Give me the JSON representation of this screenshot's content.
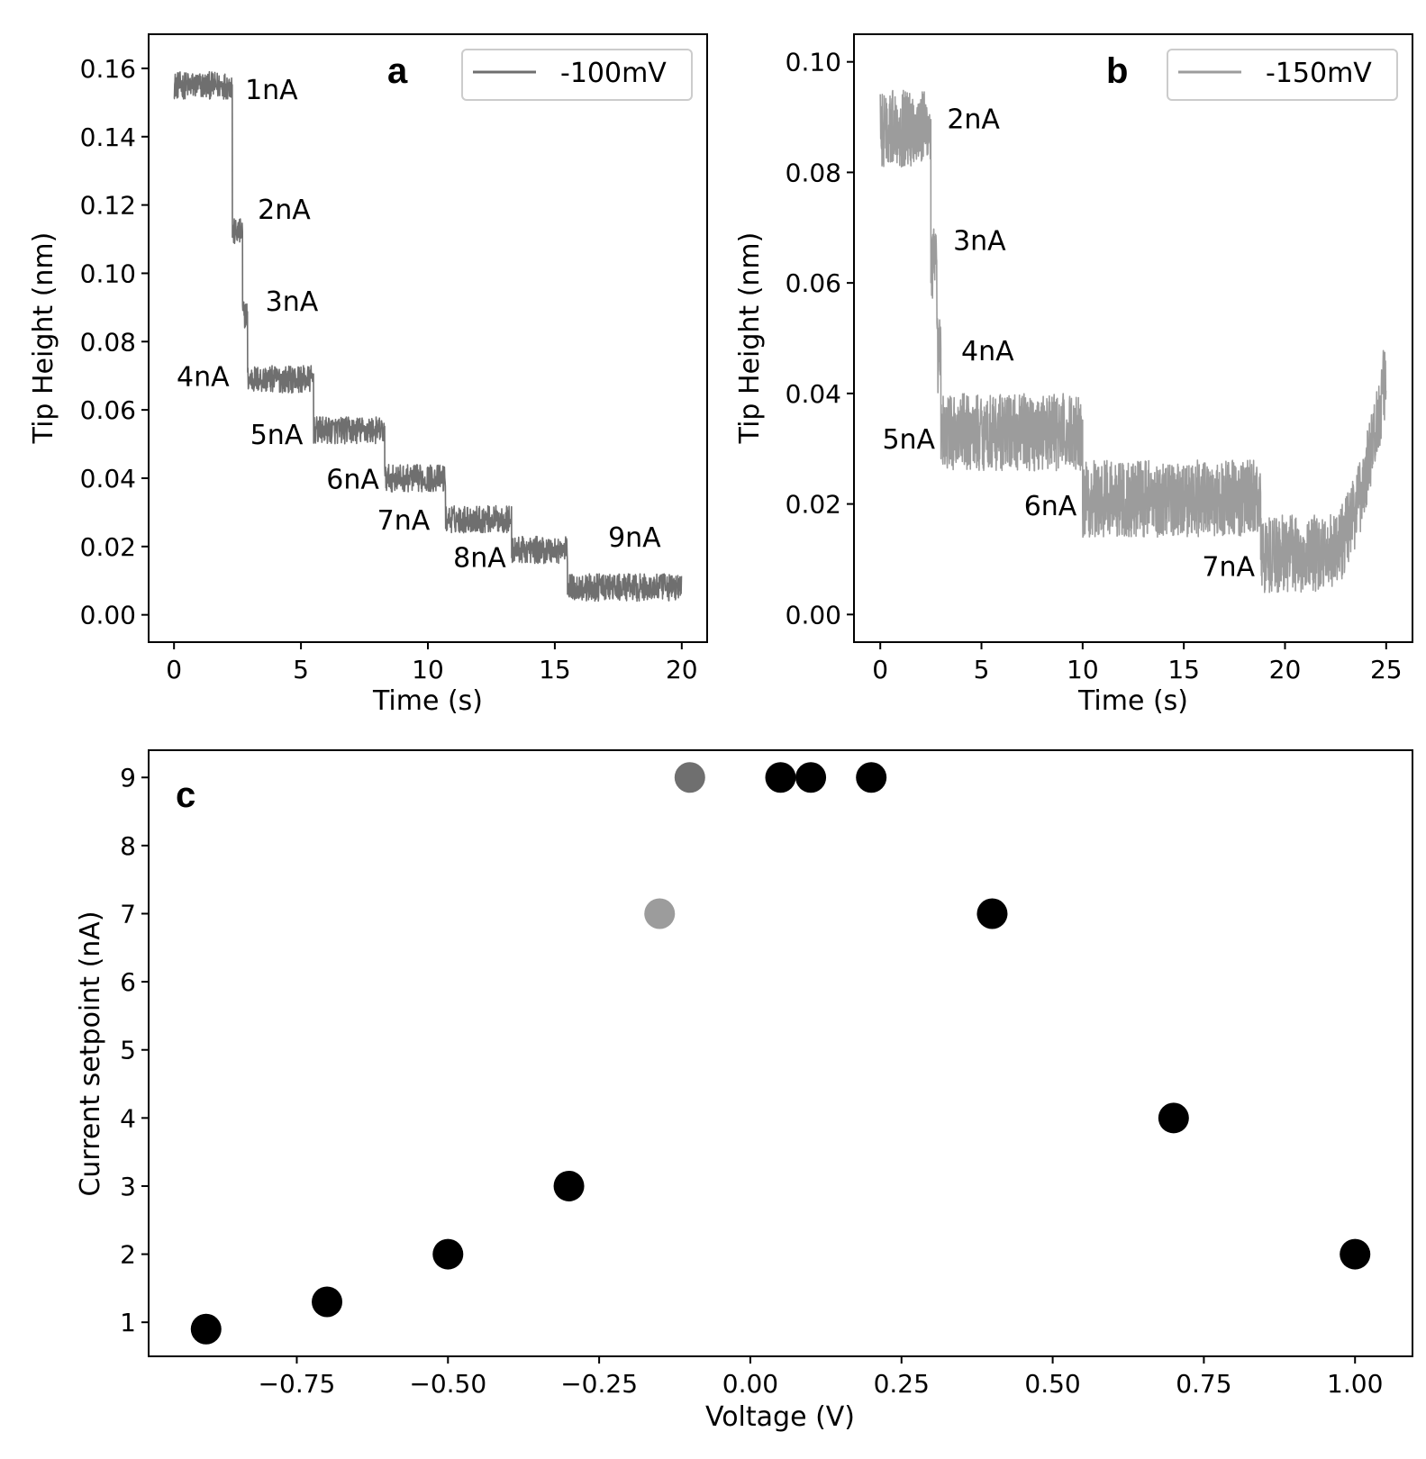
{
  "chart_data": [
    {
      "panel": "a",
      "type": "line",
      "xlabel": "Time (s)",
      "ylabel": "Tip Height (nm)",
      "xlim": [
        -1,
        21
      ],
      "ylim": [
        -0.008,
        0.17
      ],
      "xticks": [
        0,
        5,
        10,
        15,
        20
      ],
      "yticks": [
        0.0,
        0.02,
        0.04,
        0.06,
        0.08,
        0.1,
        0.12,
        0.14,
        0.16
      ],
      "ytick_labels": [
        "0.00",
        "0.02",
        "0.04",
        "0.06",
        "0.08",
        "0.10",
        "0.12",
        "0.14",
        "0.16"
      ],
      "legend": {
        "label": "-100mV",
        "color": "#6f6f6f",
        "placement": "upper-right"
      },
      "noise": 0.004,
      "segments": [
        {
          "t0": 0.0,
          "t1": 2.3,
          "y": 0.155,
          "label": "1nA"
        },
        {
          "t0": 2.3,
          "t1": 2.7,
          "y": 0.112,
          "label": "2nA"
        },
        {
          "t0": 2.7,
          "t1": 2.9,
          "y": 0.088,
          "label": "3nA"
        },
        {
          "t0": 2.9,
          "t1": 5.5,
          "y": 0.069,
          "label": "4nA"
        },
        {
          "t0": 5.5,
          "t1": 8.3,
          "y": 0.054,
          "label": "5nA"
        },
        {
          "t0": 8.3,
          "t1": 10.7,
          "y": 0.04,
          "label": "6nA"
        },
        {
          "t0": 10.7,
          "t1": 13.3,
          "y": 0.028,
          "label": "7nA"
        },
        {
          "t0": 13.3,
          "t1": 15.5,
          "y": 0.019,
          "label": "8nA"
        },
        {
          "t0": 15.5,
          "t1": 20.0,
          "y": 0.008,
          "label": "9nA"
        }
      ],
      "annotations": [
        {
          "text": "1nA",
          "x": 2.8,
          "y": 0.151
        },
        {
          "text": "2nA",
          "x": 3.3,
          "y": 0.116
        },
        {
          "text": "3nA",
          "x": 3.6,
          "y": 0.089
        },
        {
          "text": "4nA",
          "x": 0.1,
          "y": 0.067
        },
        {
          "text": "5nA",
          "x": 3.0,
          "y": 0.05
        },
        {
          "text": "6nA",
          "x": 6.0,
          "y": 0.037
        },
        {
          "text": "7nA",
          "x": 8.0,
          "y": 0.025
        },
        {
          "text": "8nA",
          "x": 11.0,
          "y": 0.014
        },
        {
          "text": "9nA",
          "x": 17.1,
          "y": 0.02
        }
      ]
    },
    {
      "panel": "b",
      "type": "line",
      "xlabel": "Time (s)",
      "ylabel": "Tip Height (nm)",
      "xlim": [
        -1.3,
        26.3
      ],
      "ylim": [
        -0.005,
        0.105
      ],
      "xticks": [
        0,
        5,
        10,
        15,
        20,
        25
      ],
      "yticks": [
        0.0,
        0.02,
        0.04,
        0.06,
        0.08,
        0.1
      ],
      "ytick_labels": [
        "0.00",
        "0.02",
        "0.04",
        "0.06",
        "0.08",
        "0.10"
      ],
      "legend": {
        "label": "-150mV",
        "color": "#9c9c9c",
        "placement": "upper-right"
      },
      "noise": 0.007,
      "segments": [
        {
          "t0": 0.0,
          "t1": 2.5,
          "y": 0.088,
          "label": "2nA"
        },
        {
          "t0": 2.5,
          "t1": 2.8,
          "y": 0.063,
          "label": "3nA"
        },
        {
          "t0": 2.8,
          "t1": 3.0,
          "y": 0.047,
          "label": "4nA"
        },
        {
          "t0": 3.0,
          "t1": 10.0,
          "y": 0.033,
          "label": "5nA"
        },
        {
          "t0": 10.0,
          "t1": 18.8,
          "y": 0.021,
          "label": "6nA"
        },
        {
          "t0": 18.8,
          "t1": 22.0,
          "y": 0.011,
          "label": "7nA"
        },
        {
          "t0": 22.0,
          "t1": 25.0,
          "y": 0.011,
          "y_end": 0.044,
          "label": ""
        }
      ],
      "annotations": [
        {
          "text": "2nA",
          "x": 3.3,
          "y": 0.088
        },
        {
          "text": "3nA",
          "x": 3.6,
          "y": 0.066
        },
        {
          "text": "4nA",
          "x": 4.0,
          "y": 0.046
        },
        {
          "text": "5nA",
          "x": 0.1,
          "y": 0.03
        },
        {
          "text": "6nA",
          "x": 7.1,
          "y": 0.018
        },
        {
          "text": "7nA",
          "x": 15.9,
          "y": 0.007
        }
      ]
    },
    {
      "panel": "c",
      "type": "scatter",
      "xlabel": "Voltage (V)",
      "ylabel": "Current setpoint (nA)",
      "xlim": [
        -0.995,
        1.095
      ],
      "ylim": [
        0.5,
        9.4
      ],
      "xticks": [
        -0.75,
        -0.5,
        -0.25,
        0.0,
        0.25,
        0.5,
        0.75,
        1.0
      ],
      "xtick_labels": [
        "−0.75",
        "−0.50",
        "−0.25",
        "0.00",
        "0.25",
        "0.50",
        "0.75",
        "1.00"
      ],
      "yticks": [
        1,
        2,
        3,
        4,
        5,
        6,
        7,
        8,
        9
      ],
      "points": [
        {
          "x": -0.9,
          "y": 0.9,
          "color": "#000000"
        },
        {
          "x": -0.7,
          "y": 1.3,
          "color": "#000000"
        },
        {
          "x": -0.5,
          "y": 2.0,
          "color": "#000000"
        },
        {
          "x": -0.3,
          "y": 3.0,
          "color": "#000000"
        },
        {
          "x": -0.15,
          "y": 7.0,
          "color": "#9c9c9c"
        },
        {
          "x": -0.1,
          "y": 9.0,
          "color": "#6f6f6f"
        },
        {
          "x": 0.05,
          "y": 9.0,
          "color": "#000000"
        },
        {
          "x": 0.1,
          "y": 9.0,
          "color": "#000000"
        },
        {
          "x": 0.2,
          "y": 9.0,
          "color": "#000000"
        },
        {
          "x": 0.4,
          "y": 7.0,
          "color": "#000000"
        },
        {
          "x": 0.7,
          "y": 4.0,
          "color": "#000000"
        },
        {
          "x": 1.0,
          "y": 2.0,
          "color": "#000000"
        }
      ]
    }
  ]
}
